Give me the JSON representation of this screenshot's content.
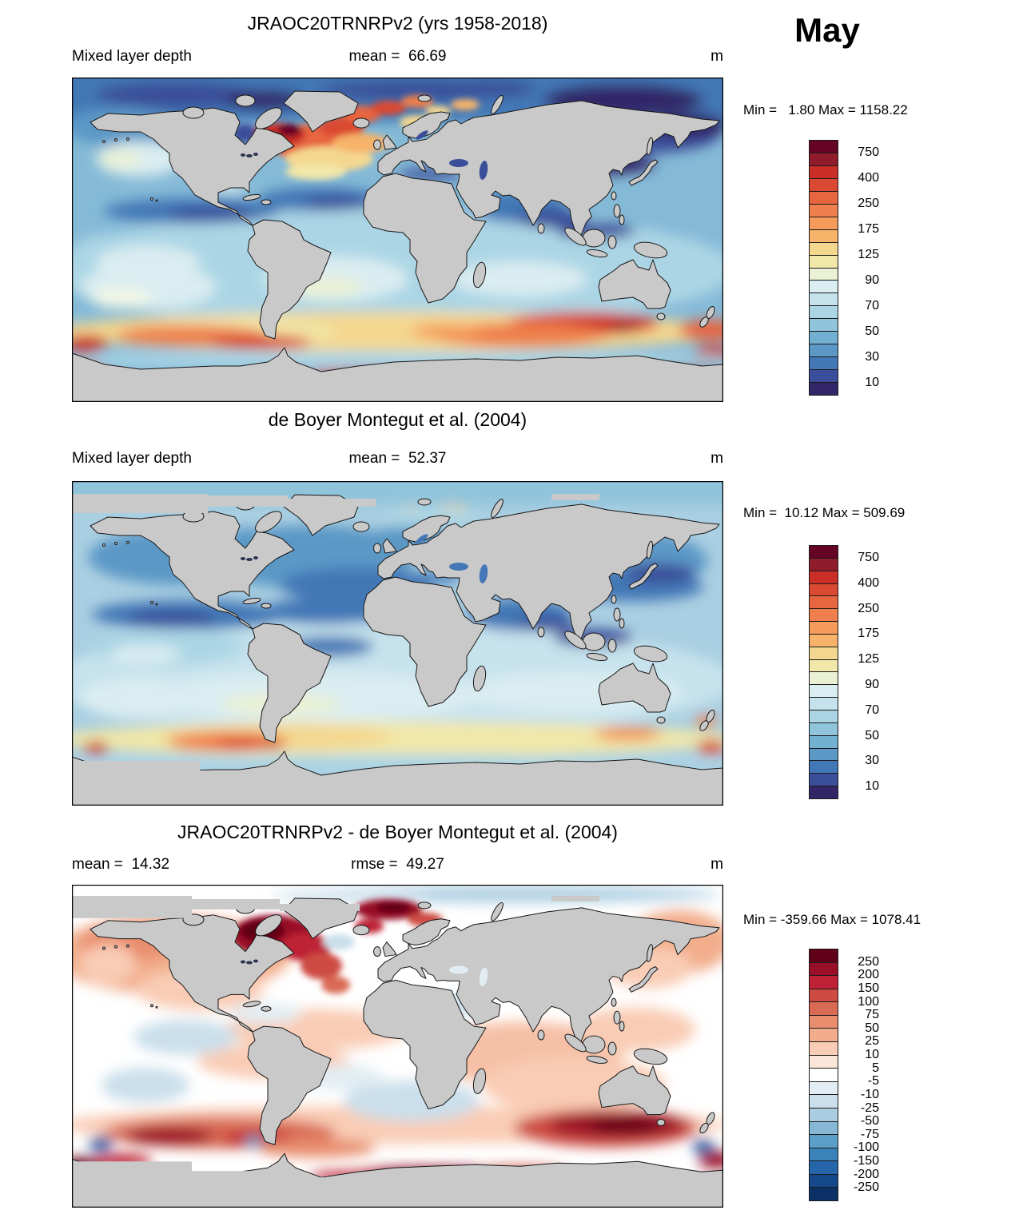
{
  "month": "May",
  "panels": [
    {
      "title": "JRAOC20TRNRPv2 (yrs 1958-2018)",
      "variable": "Mixed layer depth",
      "mean_label": "mean =  66.69",
      "unit": "m",
      "minmax": "Min =   1.80 Max = 1158.22"
    },
    {
      "title": "de Boyer Montegut et al. (2004)",
      "variable": "Mixed layer depth",
      "mean_label": "mean =  52.37",
      "unit": "m",
      "minmax": "Min =  10.12 Max = 509.69"
    },
    {
      "title": "JRAOC20TRNRPv2 - de Boyer Montegut et al. (2004)",
      "mean_label": "mean =  14.32",
      "rmse_label": "rmse =  49.27",
      "unit": "m",
      "minmax": "Min = -359.66 Max = 1078.41"
    }
  ],
  "colorbars": [
    {
      "ticks": [
        "750",
        "400",
        "250",
        "175",
        "125",
        "90",
        "70",
        "50",
        "30",
        "10"
      ],
      "tick_positions": [
        1,
        3,
        5,
        7,
        9,
        11,
        13,
        15,
        17,
        19
      ],
      "colors": [
        "#660425",
        "#8f1b2b",
        "#ca2e27",
        "#da4a32",
        "#e7653f",
        "#ef7f4c",
        "#f49a5a",
        "#f7b369",
        "#f4d78f",
        "#f1e7a8",
        "#eaf1d5",
        "#daedf1",
        "#c6e2ed",
        "#abd5e5",
        "#90c4db",
        "#72b0d2",
        "#5b98c6",
        "#4377b6",
        "#3b4e99",
        "#322568"
      ]
    },
    {
      "ticks": [
        "750",
        "400",
        "250",
        "175",
        "125",
        "90",
        "70",
        "50",
        "30",
        "10"
      ],
      "tick_positions": [
        1,
        3,
        5,
        7,
        9,
        11,
        13,
        15,
        17,
        19
      ],
      "colors": [
        "#660425",
        "#8f1b2b",
        "#ca2e27",
        "#da4a32",
        "#e7653f",
        "#ef7f4c",
        "#f49a5a",
        "#f7b369",
        "#f4d78f",
        "#f1e7a8",
        "#eaf1d5",
        "#daedf1",
        "#c6e2ed",
        "#abd5e5",
        "#90c4db",
        "#72b0d2",
        "#5b98c6",
        "#4377b6",
        "#3b4e99",
        "#322568"
      ]
    },
    {
      "ticks": [
        "250",
        "200",
        "150",
        "100",
        "75",
        "50",
        "25",
        "10",
        "5",
        "-5",
        "-10",
        "-25",
        "-50",
        "-75",
        "-100",
        "-150",
        "-200",
        "-250"
      ],
      "tick_positions": [
        1,
        2,
        3,
        4,
        5,
        6,
        7,
        8,
        9,
        10,
        11,
        12,
        13,
        14,
        15,
        16,
        17,
        18
      ],
      "colors": [
        "#610119",
        "#9a0f28",
        "#be2036",
        "#cd4b42",
        "#d96a54",
        "#e88e6e",
        "#f2ad8c",
        "#f9ccb5",
        "#fce6da",
        "#ffffff",
        "#e2edf3",
        "#cadfeb",
        "#aacde2",
        "#86b8d5",
        "#5b9ec8",
        "#3a82ba",
        "#2566ab",
        "#15498c",
        "#0c3166"
      ]
    }
  ],
  "chart_data": {
    "type": "heatmap",
    "subtype": "global-map-comparison",
    "month": "May",
    "variable": "Mixed layer depth",
    "units": "m",
    "panels": [
      {
        "name": "JRAOC20TRNRPv2 (yrs 1958-2018)",
        "mean": 66.69,
        "min": 1.8,
        "max": 1158.22,
        "colorbar_ticks": [
          750,
          400,
          250,
          175,
          125,
          90,
          70,
          50,
          30,
          10
        ],
        "palette": "red(deep)-yellow-blue(shallow)"
      },
      {
        "name": "de Boyer Montegut et al. (2004)",
        "mean": 52.37,
        "min": 10.12,
        "max": 509.69,
        "colorbar_ticks": [
          750,
          400,
          250,
          175,
          125,
          90,
          70,
          50,
          30,
          10
        ],
        "palette": "red(deep)-yellow-blue(shallow)"
      },
      {
        "name": "JRAOC20TRNRPv2 - de Boyer Montegut et al. (2004)",
        "mean": 14.32,
        "rmse": 49.27,
        "min": -359.66,
        "max": 1078.41,
        "colorbar_ticks": [
          250,
          200,
          150,
          100,
          75,
          50,
          25,
          10,
          5,
          -5,
          -10,
          -25,
          -50,
          -75,
          -100,
          -150,
          -200,
          -250
        ],
        "palette": "red(positive)-white-blue(negative)"
      }
    ]
  }
}
